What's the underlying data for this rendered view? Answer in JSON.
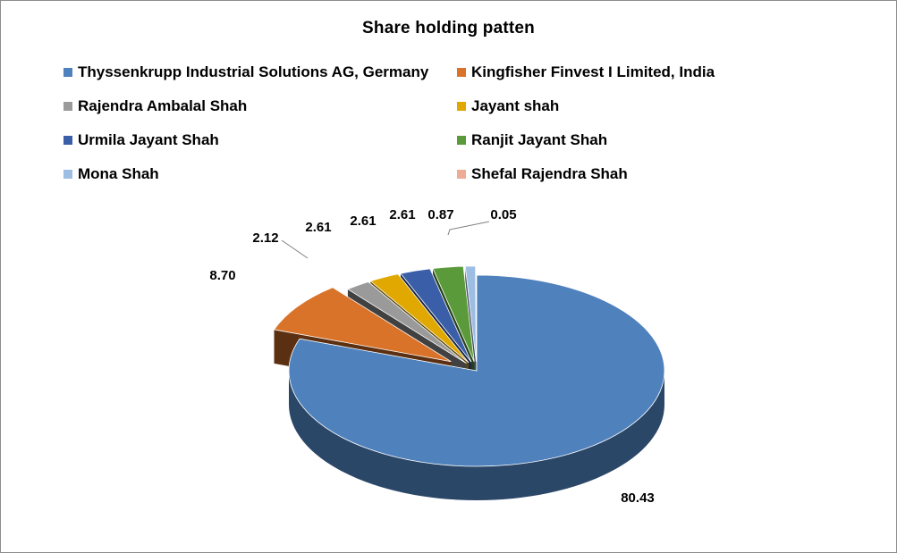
{
  "chart_data": {
    "type": "pie",
    "title": "Share holding patten",
    "categories": [
      "Thyssenkrupp Industrial Solutions AG, Germany",
      "Kingfisher Finvest I Limited, India",
      "Rajendra Ambalal Shah",
      "Jayant shah",
      "Urmila Jayant Shah",
      "Ranjit Jayant Shah",
      "Mona Shah",
      "Shefal Rajendra Shah"
    ],
    "values": [
      80.43,
      8.7,
      2.12,
      2.61,
      2.61,
      2.61,
      0.87,
      0.05
    ],
    "data_labels": [
      "80.43",
      "8.70",
      "2.12",
      "2.61",
      "2.61",
      "2.61",
      "0.87",
      "0.05"
    ],
    "colors": [
      "#4f81bd",
      "#d9732a",
      "#9a9a9a",
      "#e0a800",
      "#3a5ea8",
      "#5b9a3a",
      "#9dbde3",
      "#eeab95"
    ],
    "legend_position": "top",
    "style": "3d-exploded"
  }
}
